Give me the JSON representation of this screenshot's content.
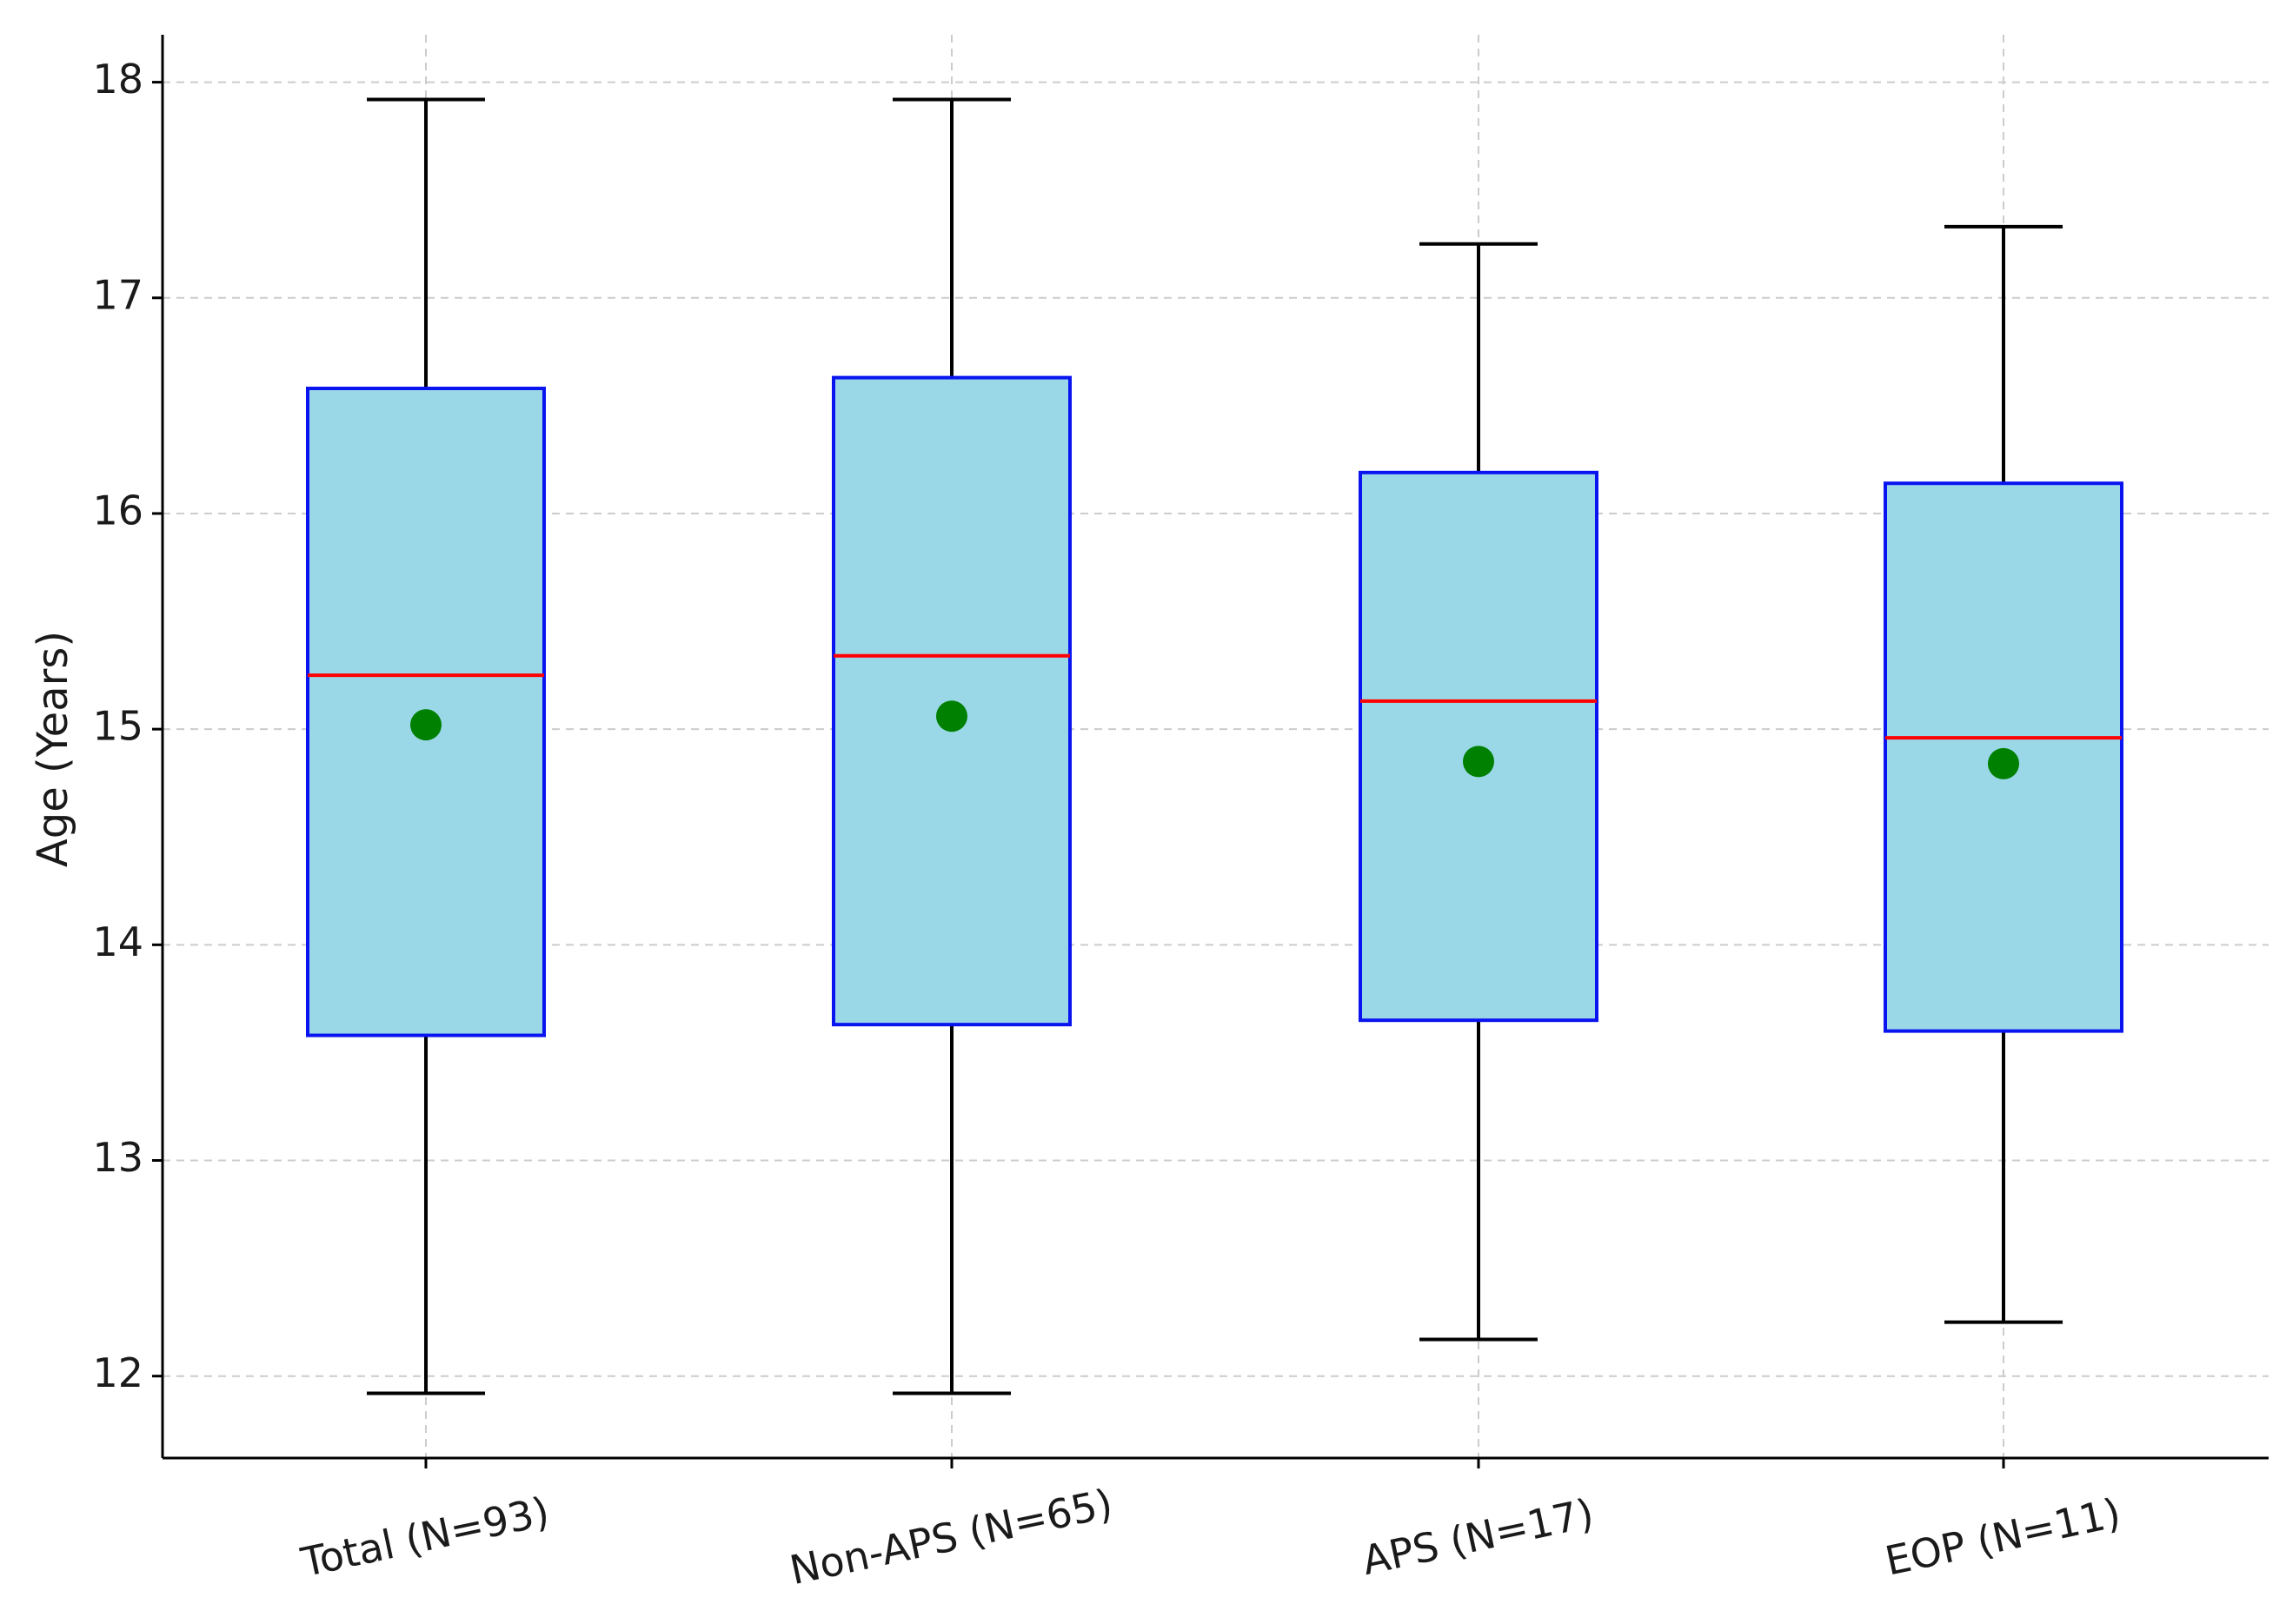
{
  "chart_data": {
    "type": "box",
    "title": "",
    "xlabel": "",
    "ylabel": "Age (Years)",
    "ylim": [
      11.62,
      18.22
    ],
    "yticks": [
      12,
      13,
      14,
      15,
      16,
      17,
      18
    ],
    "grid": true,
    "categories": [
      "Total (N=93)",
      "Non-APS (N=65)",
      "APS (N=17)",
      "EOP (N=11)"
    ],
    "boxes": [
      {
        "whisker_low": 11.92,
        "q1": 13.58,
        "median": 15.25,
        "q3": 16.58,
        "whisker_high": 17.92,
        "mean": 15.02
      },
      {
        "whisker_low": 11.92,
        "q1": 13.63,
        "median": 15.34,
        "q3": 16.63,
        "whisker_high": 17.92,
        "mean": 15.06
      },
      {
        "whisker_low": 12.17,
        "q1": 13.65,
        "median": 15.13,
        "q3": 16.19,
        "whisker_high": 17.25,
        "mean": 14.85
      },
      {
        "whisker_low": 12.25,
        "q1": 13.6,
        "median": 14.96,
        "q3": 16.14,
        "whisker_high": 17.33,
        "mean": 14.84
      }
    ],
    "colors": {
      "box_fill": "#9ad8e8",
      "box_edge": "#0a14f0",
      "median": "#ff0000",
      "mean": "#008000",
      "whisker": "#000000",
      "grid": "#cccccc",
      "axis": "#000000"
    }
  }
}
